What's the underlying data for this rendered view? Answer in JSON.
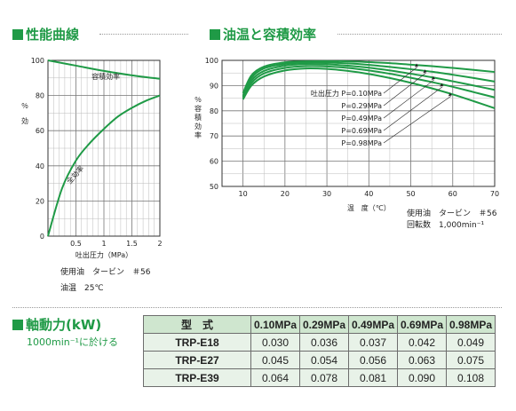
{
  "sections": {
    "perf_title": "性能曲線",
    "temp_title": "油温と容積効率",
    "power_title": "軸動力(kW)",
    "power_sub": "1000min⁻¹に於ける"
  },
  "notes": {
    "left_oil": "使用油　タービン　＃56",
    "left_temp": "油温　25℃",
    "right_oil": "使用油　タービン　＃56",
    "right_rpm": "回転数　1,000min⁻¹"
  },
  "table": {
    "headers": [
      "型　式",
      "0.10MPa",
      "0.29MPa",
      "0.49MPa",
      "0.69MPa",
      "0.98MPa"
    ],
    "rows": [
      {
        "model": "TRP-E18",
        "values": [
          "0.030",
          "0.036",
          "0.037",
          "0.042",
          "0.049"
        ]
      },
      {
        "model": "TRP-E27",
        "values": [
          "0.045",
          "0.054",
          "0.056",
          "0.063",
          "0.075"
        ]
      },
      {
        "model": "TRP-E39",
        "values": [
          "0.064",
          "0.078",
          "0.081",
          "0.090",
          "0.108"
        ]
      }
    ]
  },
  "chart_data": [
    {
      "type": "line",
      "xlabel": "吐出圧力（MPa）",
      "ylabel": "％ 効 率",
      "xlim": [
        0,
        2
      ],
      "ylim": [
        0,
        100
      ],
      "x_ticks": [
        "0.5",
        "1",
        "1.5",
        "2"
      ],
      "y_ticks": [
        "0",
        "20",
        "40",
        "60",
        "80",
        "100"
      ],
      "grid": true,
      "series": [
        {
          "name": "容積効率",
          "x": [
            0,
            0.5,
            1.0,
            1.5,
            2.0
          ],
          "values": [
            100,
            97,
            94,
            91.5,
            89.5
          ]
        },
        {
          "name": "全効率",
          "x": [
            0,
            0.25,
            0.5,
            0.75,
            1.0,
            1.25,
            1.5,
            1.75,
            2.0
          ],
          "values": [
            0,
            27,
            43,
            53,
            61,
            68,
            73,
            77,
            80
          ]
        }
      ],
      "colors": {
        "line": "#1f9a46"
      }
    },
    {
      "type": "line",
      "xlabel": "温　度（℃）",
      "ylabel": "％ 容積効率",
      "xlim": [
        5,
        70
      ],
      "ylim": [
        50,
        100
      ],
      "x_ticks": [
        "10",
        "20",
        "30",
        "40",
        "50",
        "60",
        "70"
      ],
      "y_ticks": [
        "50",
        "60",
        "70",
        "80",
        "90",
        "100"
      ],
      "grid": true,
      "x": [
        10,
        12,
        15,
        20,
        25,
        30,
        35,
        40,
        45,
        50,
        55,
        60,
        65,
        70
      ],
      "series": [
        {
          "name": "吐出圧力 P=0.10MPa",
          "values": [
            87,
            94,
            97.5,
            99.2,
            99.6,
            99.7,
            99.6,
            99.3,
            98.9,
            98.3,
            97.7,
            97.0,
            96.2,
            95.4
          ]
        },
        {
          "name": "P=0.29MPa",
          "values": [
            86,
            93,
            96.8,
            98.6,
            99.1,
            99.1,
            98.8,
            98.2,
            97.4,
            96.5,
            95.5,
            94.3,
            93.0,
            91.6
          ]
        },
        {
          "name": "P=0.49MPa",
          "values": [
            85.5,
            92,
            95.8,
            97.9,
            98.5,
            98.4,
            97.9,
            97.1,
            96.0,
            94.7,
            93.3,
            91.7,
            90.0,
            88.3
          ]
        },
        {
          "name": "P=0.69MPa",
          "values": [
            85,
            91,
            94.8,
            97.0,
            97.7,
            97.6,
            97.0,
            96.0,
            94.7,
            93.1,
            91.4,
            89.5,
            87.4,
            85.3
          ]
        },
        {
          "name": "P=0.98MPa",
          "values": [
            84.5,
            90,
            93.6,
            96.0,
            96.8,
            96.6,
            95.8,
            94.6,
            93.0,
            91.1,
            88.9,
            86.5,
            83.8,
            81.0
          ]
        }
      ],
      "colors": {
        "line": "#1f9a46"
      }
    }
  ]
}
